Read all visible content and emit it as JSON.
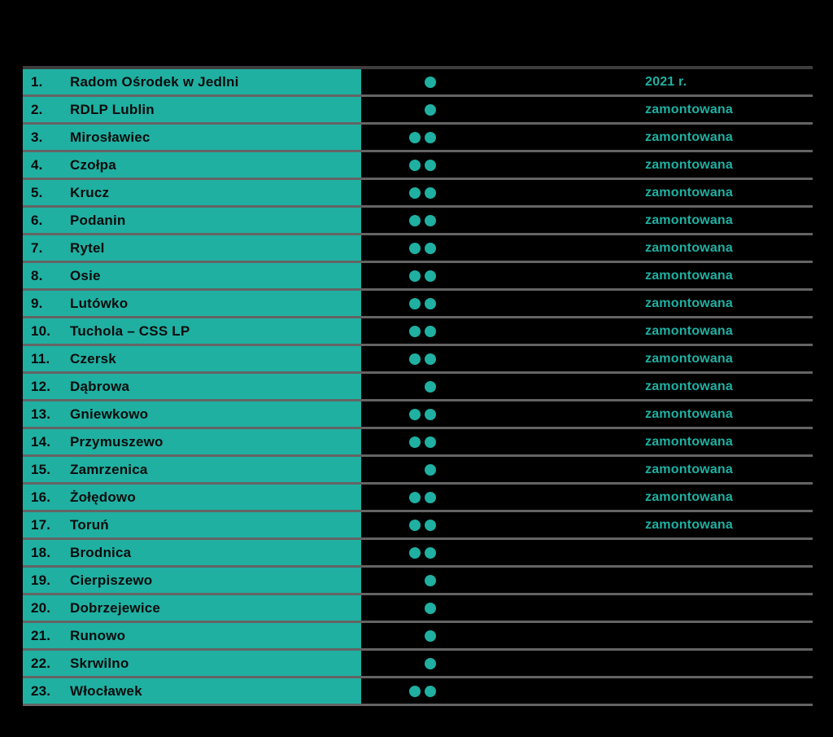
{
  "colors": {
    "accent": "#1fb0a2",
    "row_text": "#0b0b0b",
    "separator": "#646464",
    "top_border": "#3d3d3d",
    "background": "#000000"
  },
  "table": {
    "rows": [
      {
        "no": "1.",
        "name": "Radom Ośrodek w Jedlni",
        "dots": 1,
        "status": "2021 r."
      },
      {
        "no": "2.",
        "name": "RDLP Lublin",
        "dots": 1,
        "status": "zamontowana"
      },
      {
        "no": "3.",
        "name": "Mirosławiec",
        "dots": 2,
        "status": "zamontowana"
      },
      {
        "no": "4.",
        "name": "Czołpa",
        "dots": 2,
        "status": "zamontowana"
      },
      {
        "no": "5.",
        "name": "Krucz",
        "dots": 2,
        "status": "zamontowana"
      },
      {
        "no": "6.",
        "name": "Podanin",
        "dots": 2,
        "status": "zamontowana"
      },
      {
        "no": "7.",
        "name": "Rytel",
        "dots": 2,
        "status": "zamontowana"
      },
      {
        "no": "8.",
        "name": "Osie",
        "dots": 2,
        "status": "zamontowana"
      },
      {
        "no": "9.",
        "name": "Lutówko",
        "dots": 2,
        "status": "zamontowana"
      },
      {
        "no": "10.",
        "name": "Tuchola – CSS LP",
        "dots": 2,
        "status": "zamontowana"
      },
      {
        "no": "11.",
        "name": "Czersk",
        "dots": 2,
        "status": "zamontowana"
      },
      {
        "no": "12.",
        "name": "Dąbrowa",
        "dots": 1,
        "status": "zamontowana"
      },
      {
        "no": "13.",
        "name": "Gniewkowo",
        "dots": 2,
        "status": "zamontowana"
      },
      {
        "no": "14.",
        "name": "Przymuszewo",
        "dots": 2,
        "status": "zamontowana"
      },
      {
        "no": "15.",
        "name": "Zamrzenica",
        "dots": 1,
        "status": "zamontowana"
      },
      {
        "no": "16.",
        "name": "Żołędowo",
        "dots": 2,
        "status": "zamontowana"
      },
      {
        "no": "17.",
        "name": "Toruń",
        "dots": 2,
        "status": "zamontowana"
      },
      {
        "no": "18.",
        "name": "Brodnica",
        "dots": 2,
        "status": ""
      },
      {
        "no": "19.",
        "name": "Cierpiszewo",
        "dots": 1,
        "status": ""
      },
      {
        "no": "20.",
        "name": "Dobrzejewice",
        "dots": 1,
        "status": ""
      },
      {
        "no": "21.",
        "name": "Runowo",
        "dots": 1,
        "status": ""
      },
      {
        "no": "22.",
        "name": "Skrwilno",
        "dots": 1,
        "status": ""
      },
      {
        "no": "23.",
        "name": "Włocławek",
        "dots": 2,
        "status": ""
      }
    ]
  }
}
